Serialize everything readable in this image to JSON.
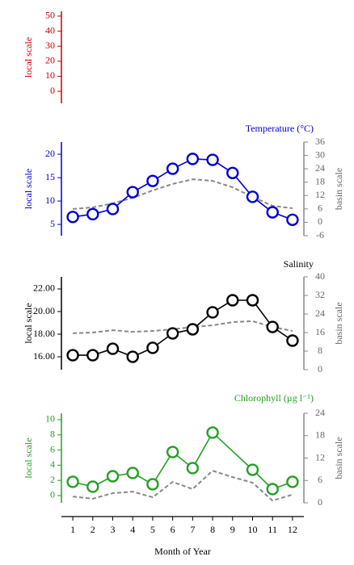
{
  "chart_data": [
    {
      "type": "line",
      "ylabel": "local scale",
      "color": "#cc0000",
      "ylim": [
        -8,
        53.2
      ],
      "yticks": [
        0,
        10,
        20,
        30,
        40,
        50
      ],
      "series": []
    },
    {
      "type": "line",
      "title": "Temperature (°C)",
      "ylabel": "local scale",
      "y2label": "basin scale",
      "color": "#0000cc",
      "ylim": [
        2.6,
        22.6
      ],
      "yticks": [
        5,
        10,
        15,
        20
      ],
      "y2lim": [
        -6,
        36
      ],
      "y2ticks": [
        -6,
        0,
        6,
        12,
        18,
        24,
        30,
        36
      ],
      "x": [
        1,
        2,
        3,
        4,
        5,
        6,
        7,
        8,
        9,
        10,
        11,
        12
      ],
      "series": [
        {
          "color": "#0000cc",
          "linestyle": "solid",
          "marker": "circle",
          "values": [
            6.6,
            7.2,
            8.3,
            11.9,
            14.3,
            16.9,
            19,
            18.8,
            16,
            10.9,
            7.6,
            6.0
          ]
        },
        {
          "color": "#888888",
          "linestyle": "dashed",
          "axis": "y2",
          "values": [
            6,
            6.7,
            8.5,
            11,
            14.3,
            17.2,
            19.3,
            18.6,
            15.7,
            11.4,
            7.4,
            6.3
          ]
        }
      ]
    },
    {
      "type": "line",
      "title": "Salinity",
      "ylabel": "local scale",
      "y2label": "basin scale",
      "color": "#000000",
      "ylim": [
        14.86,
        23.07
      ],
      "yticks": [
        {
          "value": 16,
          "label": "16.00"
        },
        {
          "value": 18,
          "label": "18.00"
        },
        {
          "value": 20,
          "label": "20.00"
        },
        {
          "value": 22,
          "label": "22.00"
        }
      ],
      "y2lim": [
        0,
        40
      ],
      "y2ticks": [
        0,
        8,
        16,
        24,
        32,
        40
      ],
      "x": [
        1,
        2,
        3,
        4,
        5,
        6,
        7,
        8,
        9,
        10,
        11,
        12
      ],
      "series": [
        {
          "color": "#000000",
          "linestyle": "solid",
          "marker": "circle",
          "values": [
            16.14,
            16.14,
            16.71,
            16,
            16.79,
            18.07,
            18.43,
            19.93,
            21,
            21,
            18.64,
            17.43
          ]
        },
        {
          "color": "#888888",
          "linestyle": "dashed",
          "axis": "y2",
          "values": [
            15.7,
            16,
            17,
            16.3,
            16.7,
            17.4,
            18.4,
            19.1,
            20.5,
            20.9,
            18.4,
            16.7
          ]
        }
      ]
    },
    {
      "type": "line",
      "title": "Chlorophyll (µg l⁻¹)",
      "ylabel": "local scale",
      "y2label": "basin scale",
      "color": "#22a022",
      "ylim": [
        -0.96,
        10.85
      ],
      "yticks": [
        0,
        2,
        4,
        6,
        8,
        10
      ],
      "y2lim": [
        0,
        24
      ],
      "y2ticks": [
        0,
        6,
        12,
        18,
        24
      ],
      "xlim": [
        0.43,
        12.57
      ],
      "xticks": [
        1,
        2,
        3,
        4,
        5,
        6,
        7,
        8,
        9,
        10,
        11,
        12
      ],
      "xlabel": "Month of Year",
      "series": [
        {
          "color": "#22a022",
          "linestyle": "solid",
          "marker": "circle",
          "x": [
            1,
            2,
            3,
            4,
            5,
            6,
            7,
            8,
            10,
            11,
            12
          ],
          "values": [
            1.81,
            1.17,
            2.55,
            2.98,
            1.49,
            5.74,
            3.62,
            8.3,
            3.4,
            0.85,
            1.81
          ]
        },
        {
          "color": "#888888",
          "linestyle": "dashed",
          "axis": "y2",
          "x": [
            1,
            2,
            3,
            4,
            5,
            6,
            7,
            8,
            9,
            10,
            11,
            12
          ],
          "values": [
            1.7,
            1.1,
            2.6,
            3.0,
            1.5,
            5.6,
            3.7,
            8.6,
            6.9,
            5.4,
            0.6,
            2.2
          ]
        }
      ]
    }
  ]
}
